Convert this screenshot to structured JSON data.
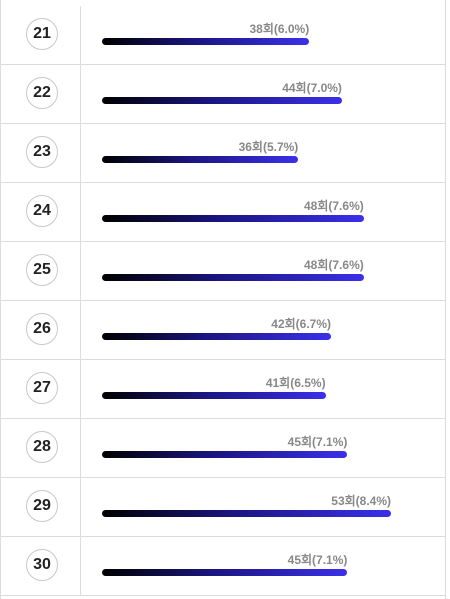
{
  "chart_data": {
    "type": "bar",
    "orientation": "horizontal",
    "categories": [
      "21",
      "22",
      "23",
      "24",
      "25",
      "26",
      "27",
      "28",
      "29",
      "30"
    ],
    "values": [
      38,
      44,
      36,
      48,
      48,
      42,
      41,
      45,
      53,
      45
    ],
    "data_labels": [
      "38회(6.0%)",
      "44회(7.0%)",
      "36회(5.7%)",
      "48회(7.6%)",
      "48회(7.6%)",
      "42회(6.7%)",
      "41회(6.5%)",
      "45회(7.1%)",
      "53회(8.4%)",
      "45회(7.1%)"
    ],
    "bar_color_start": "#000000",
    "bar_color_end": "#3b30ea"
  }
}
